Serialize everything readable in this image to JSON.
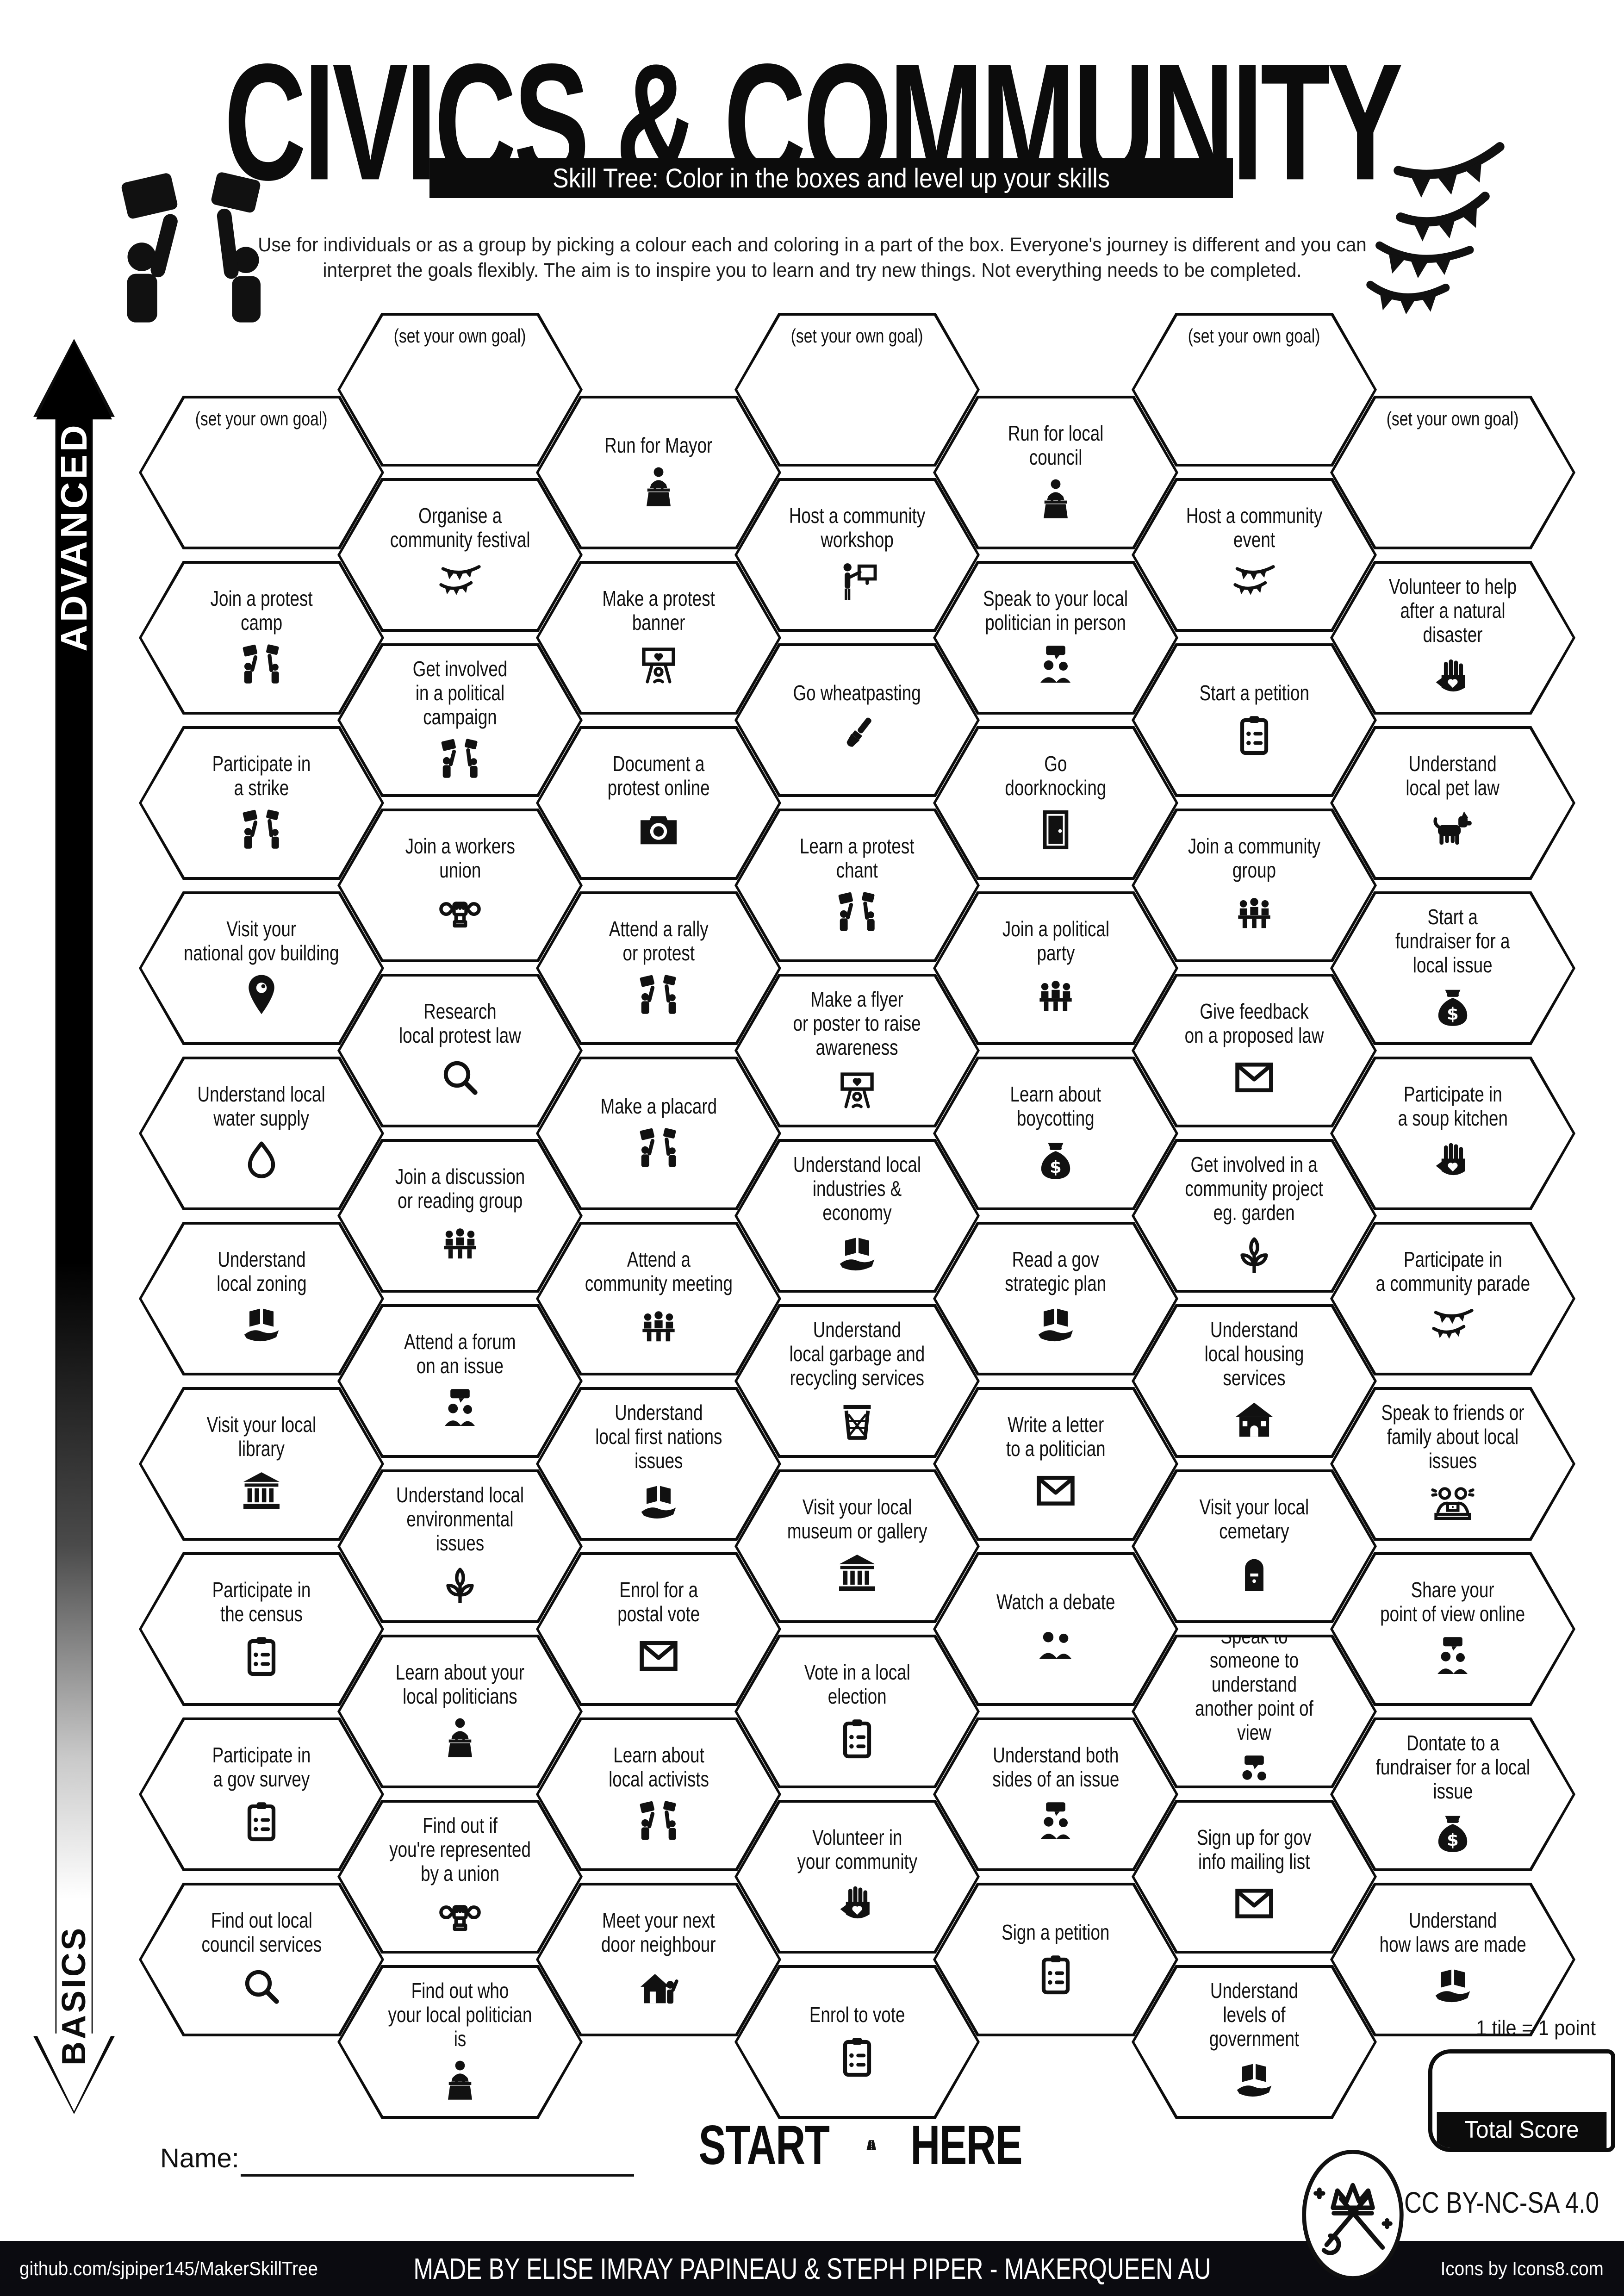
{
  "title": "CIVICS & COMMUNITY",
  "subtitle_bar": "Skill Tree:  Color in the boxes and level up your skills",
  "intro": {
    "line1": "Use for individuals or as a group by picking a colour each and coloring in a part of the box.  Everyone's journey is different and you can",
    "line2": "interpret the goals flexibly.  The aim is to inspire you to learn and try new things. Not everything needs to be completed."
  },
  "axis": {
    "top": "ADVANCED",
    "bottom": "BASICS"
  },
  "start_here": {
    "start": "START",
    "here": "HERE"
  },
  "name_label": "Name:",
  "score": {
    "tile_note": "1 tile = 1 point",
    "box_label": "Total Score"
  },
  "license": "CC BY-NC-SA 4.0",
  "footer": {
    "left": "github.com/sjpiper145/MakerSkillTree",
    "center": "MADE BY ELISE IMRAY PAPINEAU & STEPH PIPER  -  MAKERQUEEN AU",
    "right": "Icons by Icons8.com"
  },
  "colors": {
    "ink": "#0c0c0c",
    "paper": "#ffffff"
  },
  "hexes": [
    {
      "col": 0,
      "row": 0,
      "goal": true,
      "label": "(set your own goal)",
      "icon": null
    },
    {
      "col": 0,
      "row": 1,
      "label": "Join a protest\ncamp",
      "icon": "protest"
    },
    {
      "col": 0,
      "row": 2,
      "label": "Participate in\na strike",
      "icon": "protest"
    },
    {
      "col": 0,
      "row": 3,
      "label": "Visit your\nnational gov building",
      "icon": "pin"
    },
    {
      "col": 0,
      "row": 4,
      "label": "Understand local\nwater supply",
      "icon": "drop"
    },
    {
      "col": 0,
      "row": 5,
      "label": "Understand\nlocal zoning",
      "icon": "maphand"
    },
    {
      "col": 0,
      "row": 6,
      "label": "Visit your local\nlibrary",
      "icon": "building"
    },
    {
      "col": 0,
      "row": 7,
      "label": "Participate in\nthe census",
      "icon": "clipboard"
    },
    {
      "col": 0,
      "row": 8,
      "label": "Participate in\na gov survey",
      "icon": "clipboard"
    },
    {
      "col": 0,
      "row": 9,
      "label": "Find out local\ncouncil services",
      "icon": "magnifier"
    },
    {
      "col": 1,
      "row": 0,
      "goal": true,
      "label": "(set your own goal)",
      "icon": null
    },
    {
      "col": 1,
      "row": 1,
      "label": "Organise a\ncommunity festival",
      "icon": "bunting"
    },
    {
      "col": 1,
      "row": 2,
      "label": "Get involved\nin a political campaign",
      "icon": "protest"
    },
    {
      "col": 1,
      "row": 3,
      "label": "Join a workers\nunion",
      "icon": "fistwrench"
    },
    {
      "col": 1,
      "row": 4,
      "label": "Research\nlocal protest law",
      "icon": "magnifier"
    },
    {
      "col": 1,
      "row": 5,
      "label": "Join a discussion\nor reading group",
      "icon": "people3"
    },
    {
      "col": 1,
      "row": 6,
      "label": "Attend a forum\non an issue",
      "icon": "people2b"
    },
    {
      "col": 1,
      "row": 7,
      "label": "Understand local\nenvironmental issues",
      "icon": "plant"
    },
    {
      "col": 1,
      "row": 8,
      "label": "Learn about your\nlocal politicians",
      "icon": "podium"
    },
    {
      "col": 1,
      "row": 9,
      "label": "Find out if\nyou're represented\nby a union",
      "icon": "fistwrench"
    },
    {
      "col": 1,
      "row": 10,
      "label": "Find out who\nyour local politician is",
      "icon": "podium"
    },
    {
      "col": 2,
      "row": 0,
      "label": "Run for Mayor",
      "icon": "podium"
    },
    {
      "col": 2,
      "row": 1,
      "label": "Make a protest\nbanner",
      "icon": "banner"
    },
    {
      "col": 2,
      "row": 2,
      "label": "Document a\nprotest online",
      "icon": "camera"
    },
    {
      "col": 2,
      "row": 3,
      "label": "Attend a rally\nor protest",
      "icon": "protest"
    },
    {
      "col": 2,
      "row": 4,
      "label": "Make a placard",
      "icon": "protest"
    },
    {
      "col": 2,
      "row": 5,
      "label": "Attend a\ncommunity meeting",
      "icon": "people3"
    },
    {
      "col": 2,
      "row": 6,
      "label": "Understand\nlocal first nations\nissues",
      "icon": "maphand"
    },
    {
      "col": 2,
      "row": 7,
      "label": "Enrol for a\npostal vote",
      "icon": "envelope"
    },
    {
      "col": 2,
      "row": 8,
      "label": "Learn about\nlocal activists",
      "icon": "protest"
    },
    {
      "col": 2,
      "row": 9,
      "label": "Meet your next\ndoor neighbour",
      "icon": "houseperson"
    },
    {
      "col": 3,
      "row": 0,
      "goal": true,
      "label": "(set your own goal)",
      "icon": null
    },
    {
      "col": 3,
      "row": 1,
      "label": "Host a community\nworkshop",
      "icon": "presenter"
    },
    {
      "col": 3,
      "row": 2,
      "label": "Go wheatpasting",
      "icon": "paintbrush"
    },
    {
      "col": 3,
      "row": 3,
      "label": "Learn a protest\nchant",
      "icon": "protest"
    },
    {
      "col": 3,
      "row": 4,
      "label": "Make a flyer\nor poster to raise\nawareness",
      "icon": "banner"
    },
    {
      "col": 3,
      "row": 5,
      "label": "Understand local\nindustries & economy",
      "icon": "maphand"
    },
    {
      "col": 3,
      "row": 6,
      "label": "Understand\nlocal garbage and\nrecycling services",
      "icon": "trash"
    },
    {
      "col": 3,
      "row": 7,
      "label": "Visit your local\nmuseum or gallery",
      "icon": "building"
    },
    {
      "col": 3,
      "row": 8,
      "label": "Vote in a local\nelection",
      "icon": "clipboard"
    },
    {
      "col": 3,
      "row": 9,
      "label": "Volunteer in\nyour community",
      "icon": "handheart"
    },
    {
      "col": 3,
      "row": 10,
      "label": "Enrol to vote",
      "icon": "clipboard"
    },
    {
      "col": 4,
      "row": 0,
      "label": "Run for local\ncouncil",
      "icon": "podium"
    },
    {
      "col": 4,
      "row": 1,
      "label": "Speak to your local\npolitician in person",
      "icon": "people2b"
    },
    {
      "col": 4,
      "row": 2,
      "label": "Go\ndoorknocking",
      "icon": "door"
    },
    {
      "col": 4,
      "row": 3,
      "label": "Join a political\nparty",
      "icon": "people3"
    },
    {
      "col": 4,
      "row": 4,
      "label": "Learn about\nboycotting",
      "icon": "moneybag"
    },
    {
      "col": 4,
      "row": 5,
      "label": "Read a gov\nstrategic plan",
      "icon": "maphand"
    },
    {
      "col": 4,
      "row": 6,
      "label": "Write a letter\nto a politician",
      "icon": "envelope"
    },
    {
      "col": 4,
      "row": 7,
      "label": "Watch a debate",
      "icon": "people2"
    },
    {
      "col": 4,
      "row": 8,
      "label": "Understand both\nsides of an issue",
      "icon": "people2b"
    },
    {
      "col": 4,
      "row": 9,
      "label": "Sign a petition",
      "icon": "clipboard"
    },
    {
      "col": 5,
      "row": 0,
      "goal": true,
      "label": "(set your own goal)",
      "icon": null
    },
    {
      "col": 5,
      "row": 1,
      "label": "Host a community\nevent",
      "icon": "bunting"
    },
    {
      "col": 5,
      "row": 2,
      "label": "Start a petition",
      "icon": "clipboard"
    },
    {
      "col": 5,
      "row": 3,
      "label": "Join a community\ngroup",
      "icon": "people3"
    },
    {
      "col": 5,
      "row": 4,
      "label": "Give feedback\non a proposed law",
      "icon": "envelope"
    },
    {
      "col": 5,
      "row": 5,
      "label": "Get involved in a\ncommunity project\neg. garden",
      "icon": "plant"
    },
    {
      "col": 5,
      "row": 6,
      "label": "Understand\nlocal housing services",
      "icon": "house"
    },
    {
      "col": 5,
      "row": 7,
      "label": "Visit your local\ncemetary",
      "icon": "tombstone"
    },
    {
      "col": 5,
      "row": 8,
      "label": "Speak to\nsomeone to understand\nanother point of view",
      "icon": "people2b"
    },
    {
      "col": 5,
      "row": 9,
      "label": "Sign up for gov\ninfo mailing list",
      "icon": "envelope"
    },
    {
      "col": 5,
      "row": 10,
      "label": "Understand\nlevels of government",
      "icon": "maphand"
    },
    {
      "col": 6,
      "row": 0,
      "goal": true,
      "label": "(set your own goal)",
      "icon": null
    },
    {
      "col": 6,
      "row": 1,
      "label": "Volunteer to help\nafter a natural disaster",
      "icon": "handheart"
    },
    {
      "col": 6,
      "row": 2,
      "label": "Understand\nlocal pet law",
      "icon": "dog"
    },
    {
      "col": 6,
      "row": 3,
      "label": "Start a\nfundraiser for a\nlocal issue",
      "icon": "moneybag"
    },
    {
      "col": 6,
      "row": 4,
      "label": "Participate in\na soup kitchen",
      "icon": "handheart"
    },
    {
      "col": 6,
      "row": 5,
      "label": "Participate in\na community parade",
      "icon": "bunting"
    },
    {
      "col": 6,
      "row": 6,
      "label": "Speak to friends or\nfamily about local issues",
      "icon": "couch"
    },
    {
      "col": 6,
      "row": 7,
      "label": "Share your\npoint of view online",
      "icon": "people2b"
    },
    {
      "col": 6,
      "row": 8,
      "label": "Dontate to a\nfundraiser for a local\nissue",
      "icon": "moneybag"
    },
    {
      "col": 6,
      "row": 9,
      "label": "Understand\nhow laws are made",
      "icon": "maphand"
    }
  ]
}
